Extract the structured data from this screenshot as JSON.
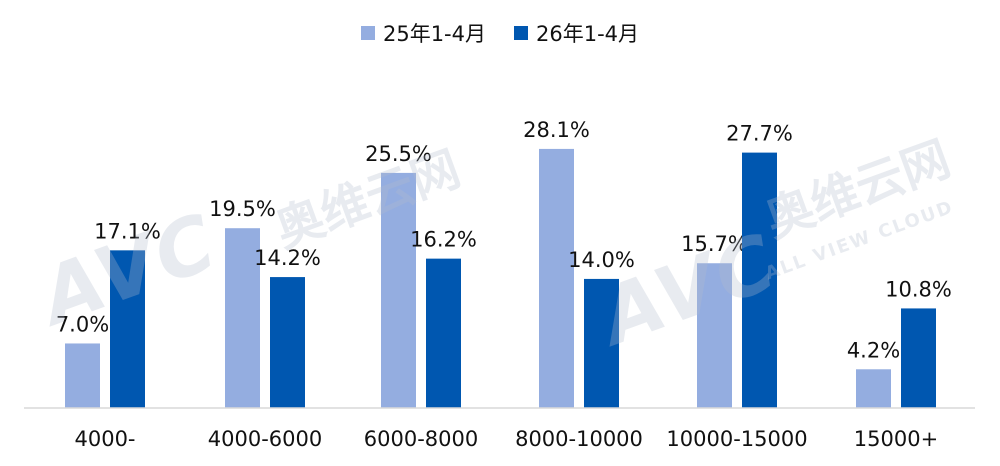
{
  "chart_data": {
    "type": "bar",
    "categories": [
      "4000-",
      "4000-6000",
      "6000-8000",
      "8000-10000",
      "10000-15000",
      "15000+"
    ],
    "series": [
      {
        "name": "25年1-4月",
        "values": [
          7.0,
          19.5,
          25.5,
          28.1,
          15.7,
          4.2
        ],
        "labels": [
          "7.0%",
          "19.5%",
          "25.5%",
          "28.1%",
          "15.7%",
          "4.2%"
        ],
        "color": "#94ADE0"
      },
      {
        "name": "26年1-4月",
        "values": [
          17.1,
          14.2,
          16.2,
          14.0,
          27.7,
          10.8
        ],
        "labels": [
          "17.1%",
          "14.2%",
          "16.2%",
          "14.0%",
          "27.7%",
          "10.8%"
        ],
        "color": "#0057B0"
      }
    ],
    "ylim": [
      0,
      30
    ],
    "grid": false,
    "legend_position": "top-center",
    "axis_line_color": "#D9D9D9"
  },
  "watermark": {
    "logo": "AVC",
    "brand_cn": "奥维云网",
    "brand_en": "ALL VIEW CLOUD"
  }
}
